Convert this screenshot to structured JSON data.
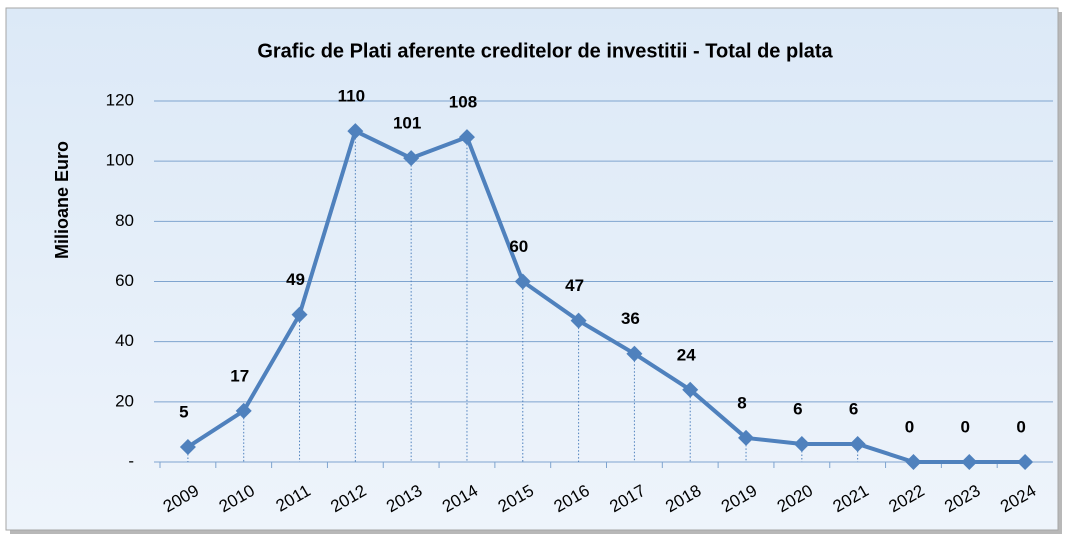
{
  "chart_data": {
    "type": "line",
    "title": "Grafic de Plati  aferente creditelor de investitii - Total de plata",
    "y_label": "Milioane Euro",
    "categories": [
      "2009",
      "2010",
      "2011",
      "2012",
      "2013",
      "2014",
      "2015",
      "2016",
      "2017",
      "2018",
      "2019",
      "2020",
      "2021",
      "2022",
      "2023",
      "2024"
    ],
    "series": [
      {
        "name": "Total de plata",
        "color": "#4f81bd",
        "values": [
          5,
          17,
          49,
          110,
          101,
          108,
          60,
          47,
          36,
          24,
          8,
          6,
          6,
          0,
          0,
          0
        ]
      }
    ],
    "ylim": [
      0,
      120
    ],
    "yticks": [
      {
        "value": 0,
        "label": "-"
      },
      20,
      40,
      60,
      80,
      100,
      120
    ],
    "grid": true
  }
}
